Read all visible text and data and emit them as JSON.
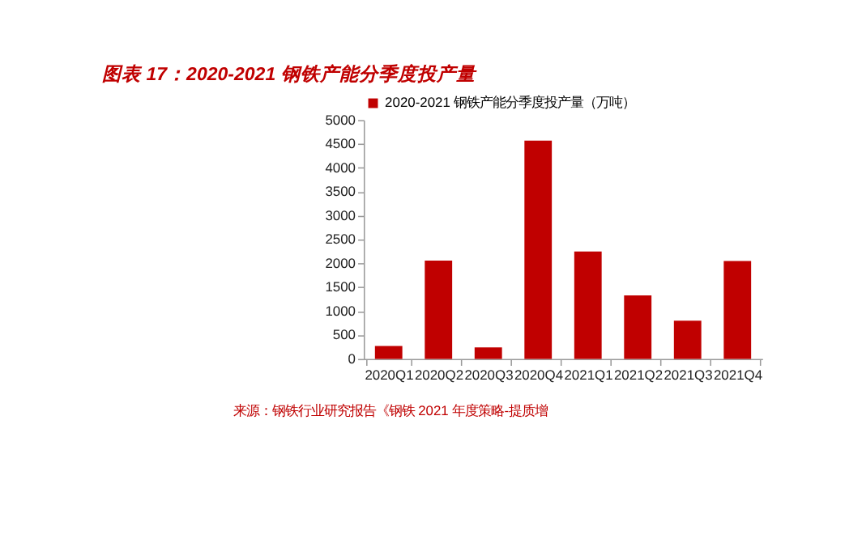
{
  "chart_data": {
    "type": "bar",
    "title": "图表 17：2020-2021 钢铁产能分季度投产量",
    "categories": [
      "2020Q1",
      "2020Q2",
      "2020Q3",
      "2020Q4",
      "2021Q1",
      "2021Q2",
      "2021Q3",
      "2021Q4"
    ],
    "series": [
      {
        "name": "2020-2021 钢铁产能分季度投产量（万吨）",
        "color": "#c00000",
        "values": [
          270,
          2060,
          240,
          4570,
          2250,
          1330,
          800,
          2050
        ]
      }
    ],
    "ylim": [
      0,
      5000
    ],
    "yticks": [
      0,
      500,
      1000,
      1500,
      2000,
      2500,
      3000,
      3500,
      4000,
      4500,
      5000
    ],
    "grid": false,
    "legend": "top",
    "annotations": [
      "来源：钢铁行业研究报告《钢铁 2021 年度策略-提质增"
    ]
  }
}
